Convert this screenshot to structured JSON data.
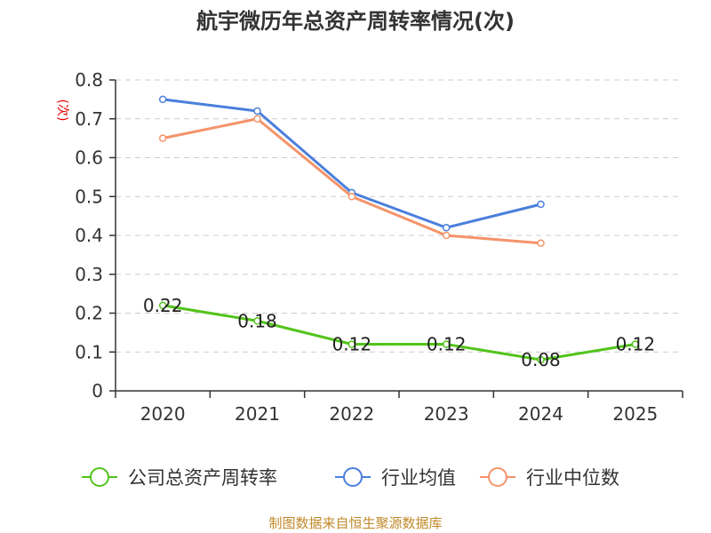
{
  "chart_data": {
    "type": "line",
    "title": "航宇微历年总资产周转率情况(次)",
    "ylabel": "(次)",
    "xlabel": "",
    "categories": [
      "2020",
      "2021",
      "2022",
      "2023",
      "2024",
      "2025"
    ],
    "ylim": [
      0,
      0.8
    ],
    "yticks": [
      "0",
      "0.1",
      "0.2",
      "0.3",
      "0.4",
      "0.5",
      "0.6",
      "0.7",
      "0.8"
    ],
    "grid": true,
    "legend_position": "bottom",
    "series": [
      {
        "name": "公司总资产周转率",
        "color": "#52c41a",
        "values": [
          0.22,
          0.18,
          0.12,
          0.12,
          0.08,
          0.12
        ],
        "labels": [
          "0.22",
          "0.18",
          "0.12",
          "0.12",
          "0.08",
          "0.12"
        ]
      },
      {
        "name": "行业均值",
        "color": "#4a7fdc",
        "values": [
          0.75,
          0.72,
          0.51,
          0.42,
          0.48,
          null
        ]
      },
      {
        "name": "行业中位数",
        "color": "#f5936a",
        "values": [
          0.65,
          0.7,
          0.5,
          0.4,
          0.38,
          null
        ]
      }
    ]
  },
  "source": "制图数据来自恒生聚源数据库"
}
